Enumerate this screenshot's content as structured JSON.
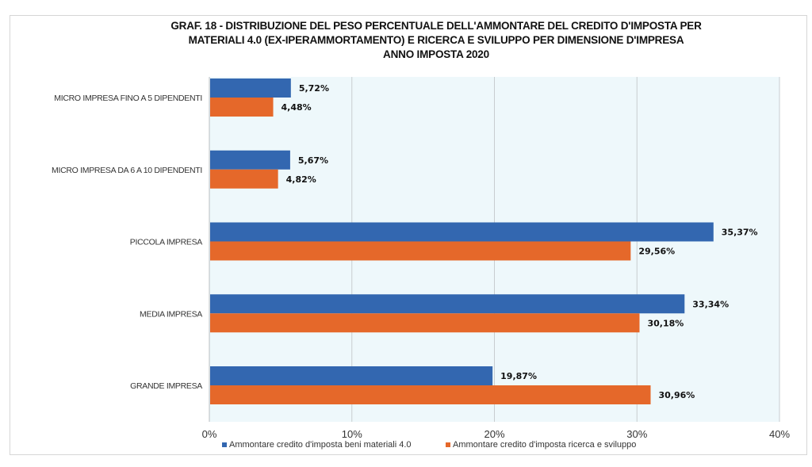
{
  "chart_data": {
    "type": "bar",
    "orientation": "horizontal",
    "title_lines": [
      "GRAF. 18  - DISTRIBUZIONE DEL PESO PERCENTUALE DELL'AMMONTARE DEL CREDITO D'IMPOSTA PER",
      "MATERIALI 4.0 (EX-IPERAMMORTAMENTO) E RICERCA E SVILUPPO  PER DIMENSIONE D'IMPRESA",
      "ANNO IMPOSTA 2020"
    ],
    "categories": [
      "MICRO IMPRESA FINO A 5 DIPENDENTI",
      "MICRO IMPRESA DA 6 A 10 DIPENDENTI",
      "PICCOLA IMPRESA",
      "MEDIA IMPRESA",
      "GRANDE IMPRESA"
    ],
    "series": [
      {
        "name": "Ammontare credito d'imposta beni materiali 4.0",
        "color": "#3367B0",
        "values": [
          5.72,
          5.67,
          35.37,
          33.34,
          19.87
        ],
        "labels": [
          "5,72%",
          "5,67%",
          "35,37%",
          "33,34%",
          "19,87%"
        ]
      },
      {
        "name": "Ammontare credito d'imposta ricerca e sviluppo",
        "color": "#E5682A",
        "values": [
          4.48,
          4.82,
          29.56,
          30.18,
          30.96
        ],
        "labels": [
          "4,48%",
          "4,82%",
          "29,56%",
          "30,18%",
          "30,96%"
        ]
      }
    ],
    "xlabel": "",
    "ylabel": "",
    "xlim": [
      0,
      40
    ],
    "xticks": [
      0,
      10,
      20,
      30,
      40
    ],
    "xtick_labels": [
      "0%",
      "10%",
      "20%",
      "30%",
      "40%"
    ],
    "grid": "vertical",
    "legend_position": "bottom",
    "plot_background": "#EEF8FB",
    "grid_color": "#C8CDD0"
  }
}
